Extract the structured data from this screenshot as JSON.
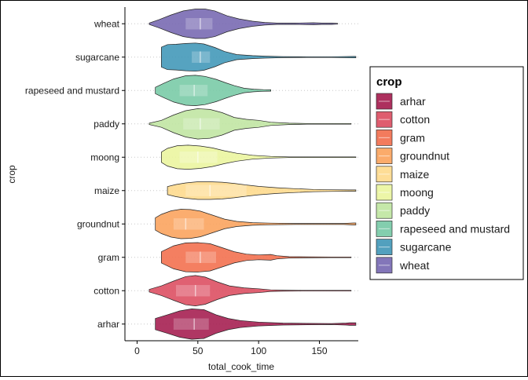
{
  "chart_data": {
    "type": "violin",
    "xlabel": "total_cook_time",
    "ylabel": "crop",
    "xlim": [
      -10,
      182
    ],
    "x_ticks": [
      0,
      50,
      100,
      150
    ],
    "legend": {
      "title": "crop",
      "placement": "right"
    },
    "categories": [
      "arhar",
      "cotton",
      "gram",
      "groundnut",
      "maize",
      "moong",
      "paddy",
      "rapeseed and mustard",
      "sugarcane",
      "wheat"
    ],
    "series": [
      {
        "name": "arhar",
        "color": "#a41a4d",
        "box": [
          30,
          47,
          59
        ],
        "density": [
          [
            15,
            0.35
          ],
          [
            25,
            0.58
          ],
          [
            35,
            0.82
          ],
          [
            45,
            0.95
          ],
          [
            55,
            0.9
          ],
          [
            65,
            0.58
          ],
          [
            75,
            0.35
          ],
          [
            85,
            0.22
          ],
          [
            100,
            0.12
          ],
          [
            120,
            0.06
          ],
          [
            140,
            0.04
          ],
          [
            160,
            0.03
          ],
          [
            172,
            0.06
          ],
          [
            175,
            0.08
          ],
          [
            180,
            0.08
          ]
        ]
      },
      {
        "name": "cotton",
        "color": "#dc4b5f",
        "box": [
          32,
          48,
          60
        ],
        "density": [
          [
            10,
            0.08
          ],
          [
            20,
            0.3
          ],
          [
            30,
            0.6
          ],
          [
            40,
            0.88
          ],
          [
            48,
            0.95
          ],
          [
            56,
            0.85
          ],
          [
            66,
            0.55
          ],
          [
            76,
            0.3
          ],
          [
            88,
            0.18
          ],
          [
            100,
            0.12
          ],
          [
            110,
            0.05
          ],
          [
            120,
            0.03
          ],
          [
            135,
            0.02
          ],
          [
            150,
            0.02
          ],
          [
            165,
            0.02
          ],
          [
            176,
            0.02
          ]
        ]
      },
      {
        "name": "gram",
        "color": "#f26d4b",
        "box": [
          40,
          52,
          65
        ],
        "density": [
          [
            20,
            0.35
          ],
          [
            30,
            0.72
          ],
          [
            40,
            0.9
          ],
          [
            50,
            0.92
          ],
          [
            60,
            0.85
          ],
          [
            70,
            0.6
          ],
          [
            80,
            0.35
          ],
          [
            90,
            0.2
          ],
          [
            100,
            0.15
          ],
          [
            110,
            0.18
          ],
          [
            115,
            0.1
          ],
          [
            125,
            0.04
          ],
          [
            140,
            0.03
          ],
          [
            160,
            0.02
          ],
          [
            176,
            0.02
          ]
        ]
      },
      {
        "name": "groundnut",
        "color": "#fba25b",
        "box": [
          30,
          40,
          55
        ],
        "density": [
          [
            15,
            0.38
          ],
          [
            20,
            0.6
          ],
          [
            28,
            0.82
          ],
          [
            36,
            0.92
          ],
          [
            44,
            0.9
          ],
          [
            52,
            0.8
          ],
          [
            62,
            0.55
          ],
          [
            72,
            0.3
          ],
          [
            82,
            0.16
          ],
          [
            95,
            0.08
          ],
          [
            110,
            0.05
          ],
          [
            130,
            0.03
          ],
          [
            150,
            0.03
          ],
          [
            170,
            0.03
          ],
          [
            178,
            0.06
          ],
          [
            180,
            0.06
          ]
        ]
      },
      {
        "name": "maize",
        "color": "#fed98b",
        "box": [
          40,
          60,
          90
        ],
        "density": [
          [
            25,
            0.25
          ],
          [
            32,
            0.38
          ],
          [
            40,
            0.48
          ],
          [
            50,
            0.55
          ],
          [
            60,
            0.55
          ],
          [
            70,
            0.52
          ],
          [
            80,
            0.45
          ],
          [
            90,
            0.35
          ],
          [
            100,
            0.26
          ],
          [
            115,
            0.18
          ],
          [
            130,
            0.12
          ],
          [
            145,
            0.07
          ],
          [
            160,
            0.05
          ],
          [
            175,
            0.04
          ],
          [
            180,
            0.04
          ]
        ]
      },
      {
        "name": "moong",
        "color": "#eaf59d",
        "box": [
          35,
          50,
          66
        ],
        "density": [
          [
            20,
            0.32
          ],
          [
            25,
            0.55
          ],
          [
            33,
            0.72
          ],
          [
            42,
            0.75
          ],
          [
            52,
            0.7
          ],
          [
            62,
            0.58
          ],
          [
            72,
            0.4
          ],
          [
            82,
            0.25
          ],
          [
            95,
            0.12
          ],
          [
            110,
            0.05
          ],
          [
            125,
            0.02
          ],
          [
            140,
            0.02
          ],
          [
            155,
            0.02
          ],
          [
            170,
            0.02
          ],
          [
            180,
            0.02
          ]
        ]
      },
      {
        "name": "paddy",
        "color": "#bfe5a0",
        "box": [
          38,
          52,
          68
        ],
        "density": [
          [
            10,
            0.04
          ],
          [
            20,
            0.22
          ],
          [
            30,
            0.55
          ],
          [
            40,
            0.82
          ],
          [
            50,
            0.95
          ],
          [
            60,
            0.9
          ],
          [
            70,
            0.7
          ],
          [
            80,
            0.4
          ],
          [
            90,
            0.28
          ],
          [
            100,
            0.22
          ],
          [
            110,
            0.1
          ],
          [
            125,
            0.04
          ],
          [
            140,
            0.02
          ],
          [
            160,
            0.02
          ],
          [
            176,
            0.02
          ]
        ]
      },
      {
        "name": "rapeseed and mustard",
        "color": "#76c9a5",
        "box": [
          35,
          47,
          58
        ],
        "density": [
          [
            15,
            0.2
          ],
          [
            22,
            0.45
          ],
          [
            30,
            0.72
          ],
          [
            40,
            0.92
          ],
          [
            48,
            0.95
          ],
          [
            56,
            0.88
          ],
          [
            65,
            0.7
          ],
          [
            73,
            0.48
          ],
          [
            80,
            0.3
          ],
          [
            88,
            0.14
          ],
          [
            96,
            0.08
          ],
          [
            104,
            0.05
          ],
          [
            110,
            0.04
          ]
        ]
      },
      {
        "name": "sugarcane",
        "color": "#3f96b7",
        "box": [
          45,
          52,
          60
        ],
        "density": [
          [
            20,
            0.62
          ],
          [
            25,
            0.78
          ],
          [
            32,
            0.8
          ],
          [
            40,
            0.85
          ],
          [
            48,
            0.88
          ],
          [
            55,
            0.82
          ],
          [
            64,
            0.6
          ],
          [
            72,
            0.35
          ],
          [
            82,
            0.16
          ],
          [
            95,
            0.09
          ],
          [
            105,
            0.06
          ],
          [
            120,
            0.03
          ],
          [
            140,
            0.02
          ],
          [
            160,
            0.02
          ],
          [
            178,
            0.04
          ],
          [
            180,
            0.04
          ]
        ]
      },
      {
        "name": "wheat",
        "color": "#7567b1",
        "box": [
          40,
          52,
          62
        ],
        "density": [
          [
            10,
            0.04
          ],
          [
            18,
            0.25
          ],
          [
            28,
            0.55
          ],
          [
            38,
            0.8
          ],
          [
            48,
            0.92
          ],
          [
            56,
            0.92
          ],
          [
            64,
            0.8
          ],
          [
            74,
            0.5
          ],
          [
            84,
            0.3
          ],
          [
            95,
            0.16
          ],
          [
            105,
            0.08
          ],
          [
            115,
            0.04
          ],
          [
            130,
            0.04
          ],
          [
            145,
            0.06
          ],
          [
            152,
            0.04
          ],
          [
            160,
            0.04
          ],
          [
            165,
            0.02
          ]
        ]
      }
    ]
  }
}
